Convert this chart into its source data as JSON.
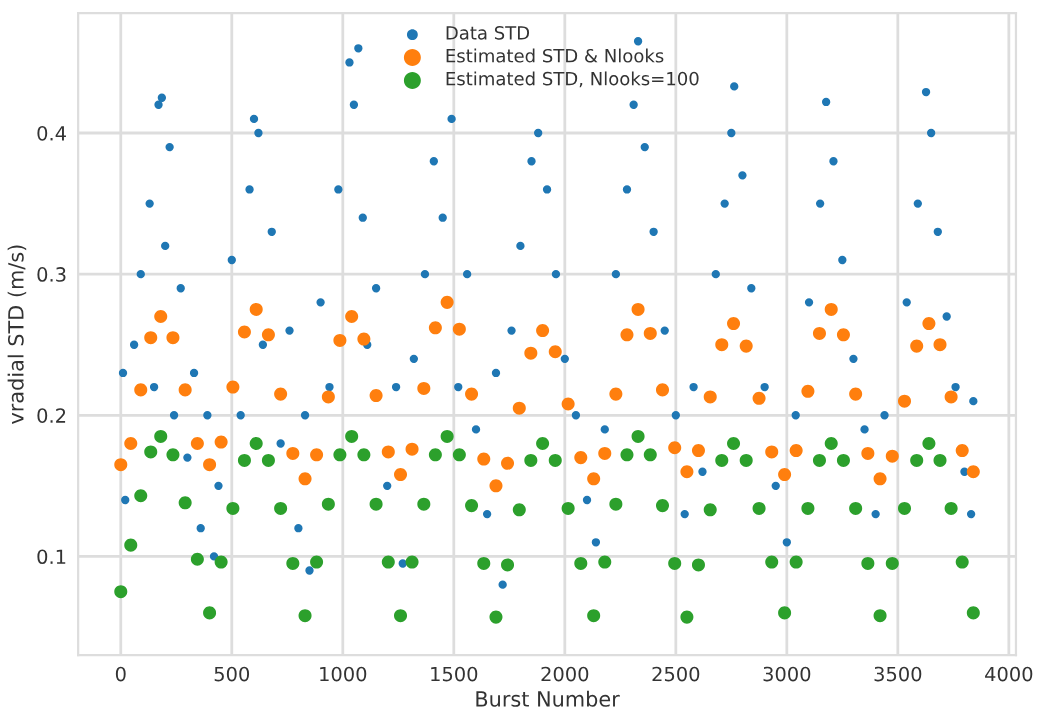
{
  "chart_data": {
    "type": "scatter",
    "xlabel": "Burst Number",
    "ylabel": "vradial STD (m/s)",
    "xlim": [
      -192,
      4032
    ],
    "ylim": [
      0.03,
      0.485
    ],
    "xticks": [
      0,
      500,
      1000,
      1500,
      2000,
      2500,
      3000,
      3500,
      4000
    ],
    "yticks": [
      0.1,
      0.2,
      0.3,
      0.4
    ],
    "grid": true,
    "legend": "top",
    "marker": "circle",
    "series": [
      {
        "name": "Data STD",
        "color": "#1f77b4",
        "x": [
          10,
          20,
          60,
          90,
          130,
          150,
          170,
          185,
          200,
          220,
          240,
          270,
          300,
          330,
          360,
          390,
          420,
          440,
          500,
          540,
          580,
          600,
          620,
          640,
          680,
          720,
          760,
          800,
          830,
          850,
          900,
          940,
          980,
          1030,
          1050,
          1070,
          1090,
          1110,
          1150,
          1200,
          1240,
          1270,
          1320,
          1370,
          1410,
          1450,
          1490,
          1520,
          1560,
          1600,
          1650,
          1690,
          1720,
          1760,
          1800,
          1850,
          1880,
          1920,
          1960,
          2000,
          2050,
          2100,
          2140,
          2180,
          2230,
          2280,
          2310,
          2330,
          2360,
          2400,
          2450,
          2500,
          2540,
          2580,
          2620,
          2680,
          2720,
          2750,
          2763,
          2800,
          2840,
          2900,
          2950,
          3000,
          3040,
          3100,
          3150,
          3177,
          3210,
          3250,
          3300,
          3350,
          3400,
          3440,
          3540,
          3590,
          3627,
          3650,
          3680,
          3720,
          3760,
          3800,
          3830,
          3840
        ],
        "values": [
          0.23,
          0.14,
          0.25,
          0.3,
          0.35,
          0.22,
          0.42,
          0.425,
          0.32,
          0.39,
          0.2,
          0.29,
          0.17,
          0.23,
          0.12,
          0.2,
          0.1,
          0.15,
          0.31,
          0.2,
          0.36,
          0.41,
          0.4,
          0.25,
          0.33,
          0.18,
          0.26,
          0.12,
          0.2,
          0.09,
          0.28,
          0.22,
          0.36,
          0.45,
          0.42,
          0.46,
          0.34,
          0.25,
          0.29,
          0.15,
          0.22,
          0.095,
          0.24,
          0.3,
          0.38,
          0.34,
          0.41,
          0.22,
          0.3,
          0.19,
          0.13,
          0.23,
          0.08,
          0.26,
          0.32,
          0.38,
          0.4,
          0.36,
          0.3,
          0.24,
          0.2,
          0.14,
          0.11,
          0.19,
          0.3,
          0.36,
          0.42,
          0.465,
          0.39,
          0.33,
          0.26,
          0.2,
          0.13,
          0.22,
          0.16,
          0.3,
          0.35,
          0.4,
          0.433,
          0.37,
          0.29,
          0.22,
          0.15,
          0.11,
          0.2,
          0.28,
          0.35,
          0.422,
          0.38,
          0.31,
          0.24,
          0.19,
          0.13,
          0.2,
          0.28,
          0.35,
          0.429,
          0.4,
          0.33,
          0.27,
          0.22,
          0.16,
          0.13,
          0.21
        ]
      },
      {
        "name": "Estimated STD & Nlooks",
        "color": "#ff7f0e",
        "x": [
          0,
          45,
          90,
          135,
          180,
          235,
          290,
          345,
          400,
          452,
          505,
          557,
          610,
          665,
          720,
          775,
          830,
          882,
          935,
          987,
          1040,
          1095,
          1150,
          1205,
          1260,
          1312,
          1365,
          1417,
          1470,
          1525,
          1580,
          1635,
          1690,
          1742,
          1795,
          1847,
          1900,
          1957,
          2015,
          2072,
          2130,
          2180,
          2230,
          2280,
          2330,
          2385,
          2440,
          2495,
          2550,
          2602,
          2655,
          2707,
          2760,
          2817,
          2875,
          2932,
          2990,
          3042,
          3095,
          3147,
          3200,
          3255,
          3310,
          3365,
          3420,
          3475,
          3530,
          3585,
          3640,
          3690,
          3740,
          3790,
          3840
        ],
        "values": [
          0.165,
          0.18,
          0.218,
          0.255,
          0.27,
          0.255,
          0.218,
          0.18,
          0.165,
          0.181,
          0.22,
          0.259,
          0.275,
          0.257,
          0.215,
          0.173,
          0.155,
          0.172,
          0.213,
          0.253,
          0.27,
          0.254,
          0.214,
          0.174,
          0.158,
          0.176,
          0.219,
          0.262,
          0.28,
          0.261,
          0.215,
          0.169,
          0.15,
          0.166,
          0.205,
          0.244,
          0.26,
          0.245,
          0.208,
          0.17,
          0.155,
          0.173,
          0.215,
          0.257,
          0.275,
          0.258,
          0.218,
          0.177,
          0.16,
          0.175,
          0.213,
          0.25,
          0.265,
          0.249,
          0.212,
          0.174,
          0.158,
          0.175,
          0.217,
          0.258,
          0.275,
          0.257,
          0.215,
          0.173,
          0.155,
          0.171,
          0.21,
          0.249,
          0.265,
          0.25,
          0.213,
          0.175,
          0.16
        ]
      },
      {
        "name": "Estimated STD, Nlooks=100",
        "color": "#2ca02c",
        "x": [
          0,
          45,
          90,
          135,
          180,
          235,
          290,
          345,
          400,
          452,
          505,
          557,
          610,
          665,
          720,
          775,
          830,
          882,
          935,
          987,
          1040,
          1095,
          1150,
          1205,
          1260,
          1312,
          1365,
          1417,
          1470,
          1525,
          1580,
          1635,
          1690,
          1742,
          1795,
          1847,
          1900,
          1957,
          2015,
          2072,
          2130,
          2180,
          2230,
          2280,
          2330,
          2385,
          2440,
          2495,
          2550,
          2602,
          2655,
          2707,
          2760,
          2817,
          2875,
          2932,
          2990,
          3042,
          3095,
          3147,
          3200,
          3255,
          3310,
          3365,
          3420,
          3475,
          3530,
          3585,
          3640,
          3690,
          3740,
          3790,
          3840
        ],
        "values": [
          0.075,
          0.108,
          0.143,
          0.174,
          0.185,
          0.172,
          0.138,
          0.098,
          0.06,
          0.096,
          0.134,
          0.168,
          0.18,
          0.168,
          0.134,
          0.095,
          0.058,
          0.096,
          0.137,
          0.172,
          0.185,
          0.172,
          0.137,
          0.096,
          0.058,
          0.096,
          0.137,
          0.172,
          0.185,
          0.172,
          0.136,
          0.095,
          0.057,
          0.094,
          0.133,
          0.168,
          0.18,
          0.168,
          0.134,
          0.095,
          0.058,
          0.096,
          0.137,
          0.172,
          0.185,
          0.172,
          0.136,
          0.095,
          0.057,
          0.094,
          0.133,
          0.168,
          0.18,
          0.168,
          0.134,
          0.096,
          0.06,
          0.096,
          0.134,
          0.168,
          0.18,
          0.168,
          0.134,
          0.095,
          0.058,
          0.095,
          0.134,
          0.168,
          0.18,
          0.168,
          0.134,
          0.096,
          0.06
        ]
      }
    ]
  }
}
